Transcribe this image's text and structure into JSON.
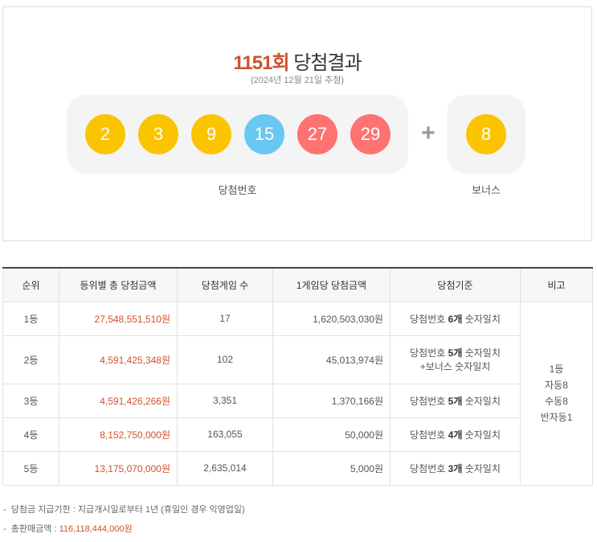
{
  "header": {
    "round": "1151회",
    "title_suffix": "당첨결과",
    "draw_date": "(2024년 12월 21일 추첨)"
  },
  "numbers": {
    "main": [
      {
        "value": "2",
        "color": "#fbc400"
      },
      {
        "value": "3",
        "color": "#fbc400"
      },
      {
        "value": "9",
        "color": "#fbc400"
      },
      {
        "value": "15",
        "color": "#69c8f2"
      },
      {
        "value": "27",
        "color": "#ff7272"
      },
      {
        "value": "29",
        "color": "#ff7272"
      }
    ],
    "plus": "+",
    "bonus": {
      "value": "8",
      "color": "#fbc400"
    },
    "main_label": "당첨번호",
    "bonus_label": "보너스"
  },
  "table": {
    "headers": [
      "순위",
      "등위별 총 당첨금액",
      "당첨게임 수",
      "1게임당 당첨금액",
      "당첨기준",
      "비고"
    ],
    "rows": [
      {
        "rank": "1등",
        "total": "27,548,551,510원",
        "games": "17",
        "per_game": "1,620,503,030원",
        "criteria_pre": "당첨번호 ",
        "criteria_bold": "6개",
        "criteria_post": " 숫자일치",
        "criteria_line2": ""
      },
      {
        "rank": "2등",
        "total": "4,591,425,348원",
        "games": "102",
        "per_game": "45,013,974원",
        "criteria_pre": "당첨번호 ",
        "criteria_bold": "5개",
        "criteria_post": " 숫자일치",
        "criteria_line2": "+보너스 숫자일치"
      },
      {
        "rank": "3등",
        "total": "4,591,426,266원",
        "games": "3,351",
        "per_game": "1,370,166원",
        "criteria_pre": "당첨번호 ",
        "criteria_bold": "5개",
        "criteria_post": " 숫자일치",
        "criteria_line2": ""
      },
      {
        "rank": "4등",
        "total": "8,152,750,000원",
        "games": "163,055",
        "per_game": "50,000원",
        "criteria_pre": "당첨번호 ",
        "criteria_bold": "4개",
        "criteria_post": " 숫자일치",
        "criteria_line2": ""
      },
      {
        "rank": "5등",
        "total": "13,175,070,000원",
        "games": "2,635,014",
        "per_game": "5,000원",
        "criteria_pre": "당첨번호 ",
        "criteria_bold": "3개",
        "criteria_post": " 숫자일치",
        "criteria_line2": ""
      }
    ],
    "note_lines": [
      "1등",
      "자동8",
      "수동8",
      "반자동1"
    ]
  },
  "footnotes": {
    "deadline_label": "당첨금 지급기한 : 지급개시일로부터 1년 (휴일인 경우 익영업일)",
    "sales_label": "총판매금액 : ",
    "sales_value": "116,118,444,000원"
  }
}
